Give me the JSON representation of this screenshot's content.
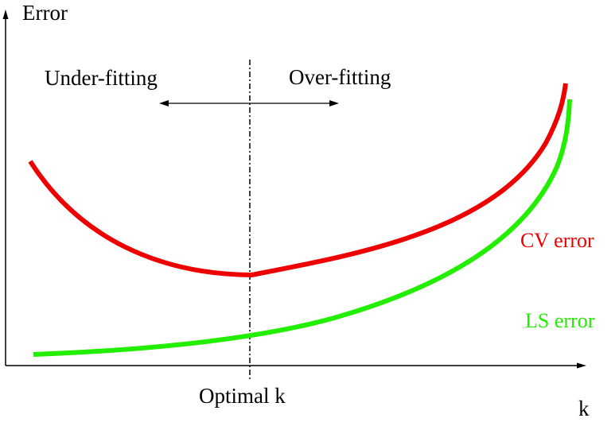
{
  "axes": {
    "y_label": "Error",
    "x_label": "k"
  },
  "regions": {
    "left": "Under-fitting",
    "right": "Over-fitting"
  },
  "marker": {
    "label": "Optimal k"
  },
  "curves": {
    "cv": {
      "label": "CV error",
      "color": "#ee0000"
    },
    "ls": {
      "label": "LS error",
      "color": "#22ee00"
    }
  }
}
